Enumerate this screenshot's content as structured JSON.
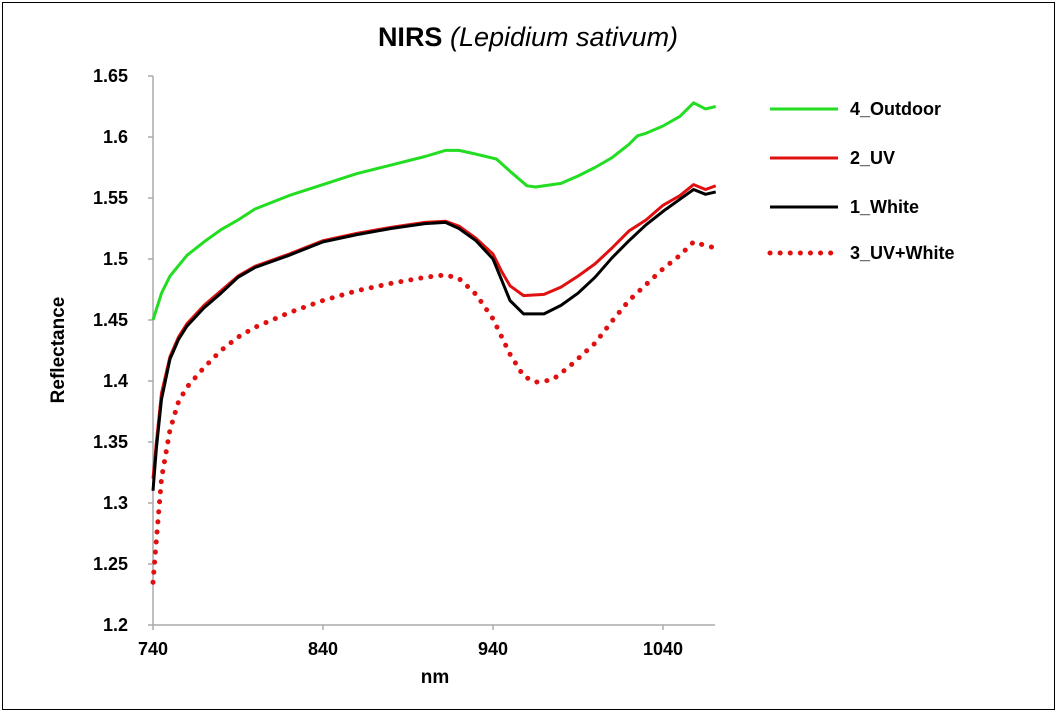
{
  "chart_data": {
    "type": "line",
    "title": "NIRS",
    "title_italic": "(Lepidium sativum)",
    "xlabel": "nm",
    "ylabel": "Reflectance",
    "xlim": [
      740,
      1071
    ],
    "ylim": [
      1.2,
      1.65
    ],
    "x_ticks": [
      "740",
      "840",
      "940",
      "1040"
    ],
    "x_tick_values": [
      740,
      840,
      940,
      1040
    ],
    "y_ticks": [
      "1.2",
      "1.25",
      "1.3",
      "1.35",
      "1.4",
      "1.45",
      "1.5",
      "1.55",
      "1.6",
      "1.65"
    ],
    "y_tick_values": [
      1.2,
      1.25,
      1.3,
      1.35,
      1.4,
      1.45,
      1.5,
      1.55,
      1.6,
      1.65
    ],
    "grid": false,
    "legend_position": "right",
    "series": [
      {
        "name": "4_Outdoor",
        "color": "#22dd22",
        "dash": "solid",
        "x": [
          740,
          745,
          750,
          760,
          770,
          780,
          790,
          800,
          820,
          840,
          860,
          880,
          900,
          912,
          920,
          930,
          942,
          950,
          960,
          965,
          980,
          990,
          1000,
          1010,
          1020,
          1025,
          1030,
          1040,
          1050,
          1058,
          1065,
          1071
        ],
        "y": [
          1.45,
          1.472,
          1.486,
          1.503,
          1.514,
          1.524,
          1.532,
          1.541,
          1.552,
          1.561,
          1.57,
          1.577,
          1.584,
          1.589,
          1.589,
          1.586,
          1.582,
          1.572,
          1.56,
          1.559,
          1.562,
          1.568,
          1.575,
          1.583,
          1.594,
          1.601,
          1.603,
          1.609,
          1.617,
          1.628,
          1.623,
          1.625
        ]
      },
      {
        "name": "2_UV",
        "color": "#e01010",
        "dash": "solid",
        "x": [
          740,
          742,
          745,
          750,
          755,
          760,
          770,
          780,
          790,
          800,
          820,
          840,
          860,
          880,
          900,
          912,
          920,
          930,
          940,
          945,
          950,
          958,
          970,
          980,
          990,
          1000,
          1010,
          1020,
          1030,
          1040,
          1050,
          1058,
          1065,
          1071
        ],
        "y": [
          1.32,
          1.35,
          1.39,
          1.42,
          1.436,
          1.447,
          1.462,
          1.474,
          1.486,
          1.494,
          1.504,
          1.515,
          1.521,
          1.526,
          1.53,
          1.531,
          1.527,
          1.517,
          1.504,
          1.49,
          1.478,
          1.47,
          1.471,
          1.477,
          1.486,
          1.496,
          1.509,
          1.523,
          1.532,
          1.544,
          1.552,
          1.561,
          1.557,
          1.56
        ]
      },
      {
        "name": "1_White",
        "color": "#000000",
        "dash": "solid",
        "x": [
          740,
          742,
          745,
          750,
          755,
          760,
          770,
          780,
          790,
          800,
          820,
          840,
          860,
          880,
          900,
          912,
          920,
          930,
          940,
          945,
          950,
          958,
          970,
          980,
          990,
          1000,
          1010,
          1020,
          1030,
          1040,
          1050,
          1058,
          1065,
          1071
        ],
        "y": [
          1.31,
          1.345,
          1.385,
          1.418,
          1.434,
          1.445,
          1.46,
          1.472,
          1.485,
          1.493,
          1.503,
          1.514,
          1.52,
          1.525,
          1.529,
          1.53,
          1.525,
          1.515,
          1.5,
          1.483,
          1.466,
          1.455,
          1.455,
          1.462,
          1.472,
          1.485,
          1.501,
          1.515,
          1.528,
          1.539,
          1.549,
          1.557,
          1.553,
          1.555
        ]
      },
      {
        "name": "3_UV+White",
        "color": "#e01010",
        "dash": "dotted",
        "x": [
          740,
          742,
          745,
          750,
          755,
          760,
          770,
          780,
          790,
          800,
          820,
          840,
          860,
          880,
          900,
          912,
          920,
          930,
          940,
          950,
          958,
          965,
          975,
          985,
          1000,
          1010,
          1020,
          1030,
          1040,
          1050,
          1058,
          1065,
          1071
        ],
        "y": [
          1.235,
          1.27,
          1.32,
          1.36,
          1.383,
          1.395,
          1.411,
          1.425,
          1.436,
          1.444,
          1.456,
          1.466,
          1.474,
          1.48,
          1.485,
          1.487,
          1.484,
          1.471,
          1.451,
          1.422,
          1.404,
          1.399,
          1.401,
          1.412,
          1.431,
          1.449,
          1.466,
          1.479,
          1.492,
          1.503,
          1.514,
          1.511,
          1.509
        ]
      }
    ]
  }
}
